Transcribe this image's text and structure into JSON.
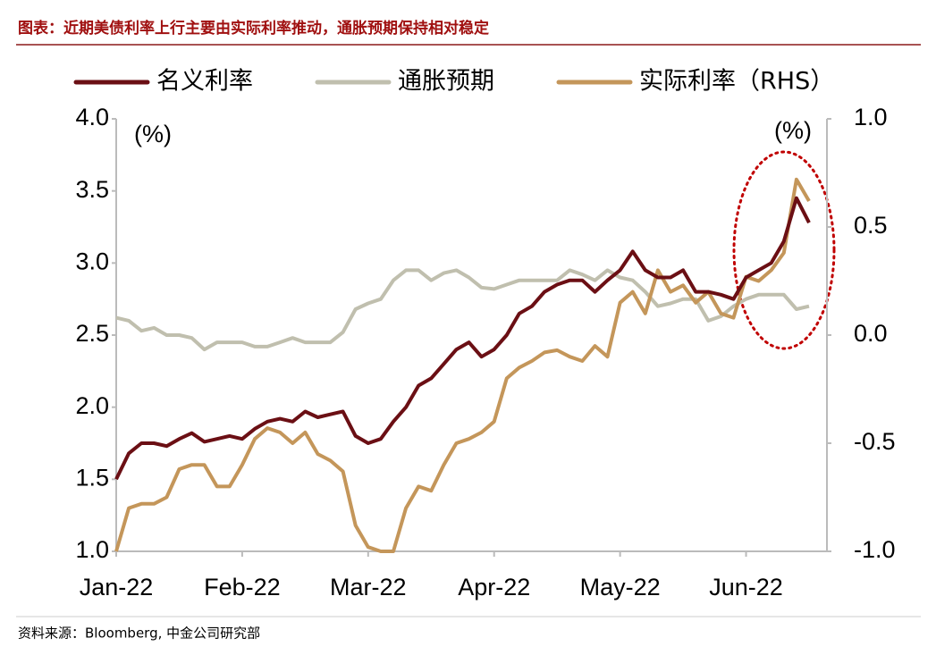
{
  "chart_data": {
    "type": "line",
    "title": "图表：近期美债利率上行主要由实际利率推动，通胀预期保持相对稳定",
    "source": "资料来源：Bloomberg, 中金公司研究部",
    "y_unit_label": "(%)",
    "y2_unit_label": "(%)",
    "categories": [
      "Jan-22",
      null,
      null,
      null,
      null,
      null,
      null,
      null,
      null,
      null,
      "Feb-22",
      null,
      null,
      null,
      null,
      null,
      null,
      null,
      null,
      null,
      "Mar-22",
      null,
      null,
      null,
      null,
      null,
      null,
      null,
      null,
      null,
      "Apr-22",
      null,
      null,
      null,
      null,
      null,
      null,
      null,
      null,
      null,
      "May-22",
      null,
      null,
      null,
      null,
      null,
      null,
      null,
      null,
      null,
      "Jun-22",
      null,
      null,
      null,
      null,
      null
    ],
    "series": [
      {
        "name": "名义利率",
        "color": "#6b0f14",
        "axis": "y",
        "values": [
          1.5,
          1.68,
          1.75,
          1.75,
          1.73,
          1.78,
          1.82,
          1.76,
          1.78,
          1.8,
          1.78,
          1.85,
          1.9,
          1.92,
          1.9,
          1.97,
          1.93,
          1.95,
          1.97,
          1.8,
          1.75,
          1.78,
          1.9,
          2.0,
          2.15,
          2.2,
          2.3,
          2.4,
          2.45,
          2.35,
          2.4,
          2.5,
          2.65,
          2.7,
          2.8,
          2.85,
          2.88,
          2.88,
          2.8,
          2.88,
          2.95,
          3.08,
          2.95,
          2.9,
          2.9,
          2.95,
          2.8,
          2.8,
          2.78,
          2.75,
          2.9,
          2.95,
          3.0,
          3.15,
          3.45,
          3.28
        ]
      },
      {
        "name": "通胀预期",
        "color": "#c0bfae",
        "axis": "y",
        "values": [
          2.62,
          2.6,
          2.53,
          2.55,
          2.5,
          2.5,
          2.48,
          2.4,
          2.45,
          2.45,
          2.45,
          2.42,
          2.42,
          2.45,
          2.48,
          2.45,
          2.45,
          2.45,
          2.52,
          2.68,
          2.72,
          2.75,
          2.88,
          2.95,
          2.95,
          2.88,
          2.93,
          2.95,
          2.9,
          2.83,
          2.82,
          2.85,
          2.88,
          2.88,
          2.88,
          2.88,
          2.95,
          2.92,
          2.88,
          2.95,
          2.9,
          2.88,
          2.8,
          2.7,
          2.72,
          2.75,
          2.75,
          2.6,
          2.63,
          2.7,
          2.75,
          2.78,
          2.78,
          2.78,
          2.68,
          2.7
        ]
      },
      {
        "name": "实际利率（RHS）",
        "color": "#c4965a",
        "axis": "y2",
        "values": [
          -1.0,
          -0.8,
          -0.78,
          -0.78,
          -0.75,
          -0.62,
          -0.6,
          -0.6,
          -0.7,
          -0.7,
          -0.6,
          -0.48,
          -0.43,
          -0.45,
          -0.5,
          -0.45,
          -0.55,
          -0.58,
          -0.63,
          -0.88,
          -0.98,
          -1.0,
          -1.0,
          -0.8,
          -0.7,
          -0.72,
          -0.6,
          -0.5,
          -0.48,
          -0.45,
          -0.4,
          -0.2,
          -0.15,
          -0.12,
          -0.08,
          -0.07,
          -0.1,
          -0.12,
          -0.05,
          -0.1,
          0.15,
          0.2,
          0.1,
          0.3,
          0.2,
          0.23,
          0.15,
          0.2,
          0.1,
          0.08,
          0.27,
          0.25,
          0.3,
          0.38,
          0.72,
          0.62
        ]
      }
    ],
    "ylim": [
      1.0,
      4.0
    ],
    "yticks": [
      {
        "value": 1.0,
        "label": "1.0"
      },
      1.5,
      {
        "value": 2.0,
        "label": "2.0"
      },
      2.5,
      {
        "value": 3.0,
        "label": "3.0"
      },
      3.5,
      {
        "value": 4.0,
        "label": "4.0"
      }
    ],
    "y2lim": [
      -1.0,
      1.0
    ],
    "y2ticks": [
      {
        "value": -1.0,
        "label": "-1.0"
      },
      -0.5,
      {
        "value": 0.0,
        "label": "0.0"
      },
      0.5,
      {
        "value": 1.0,
        "label": "1.0"
      }
    ],
    "grid": false,
    "legend": "top"
  }
}
